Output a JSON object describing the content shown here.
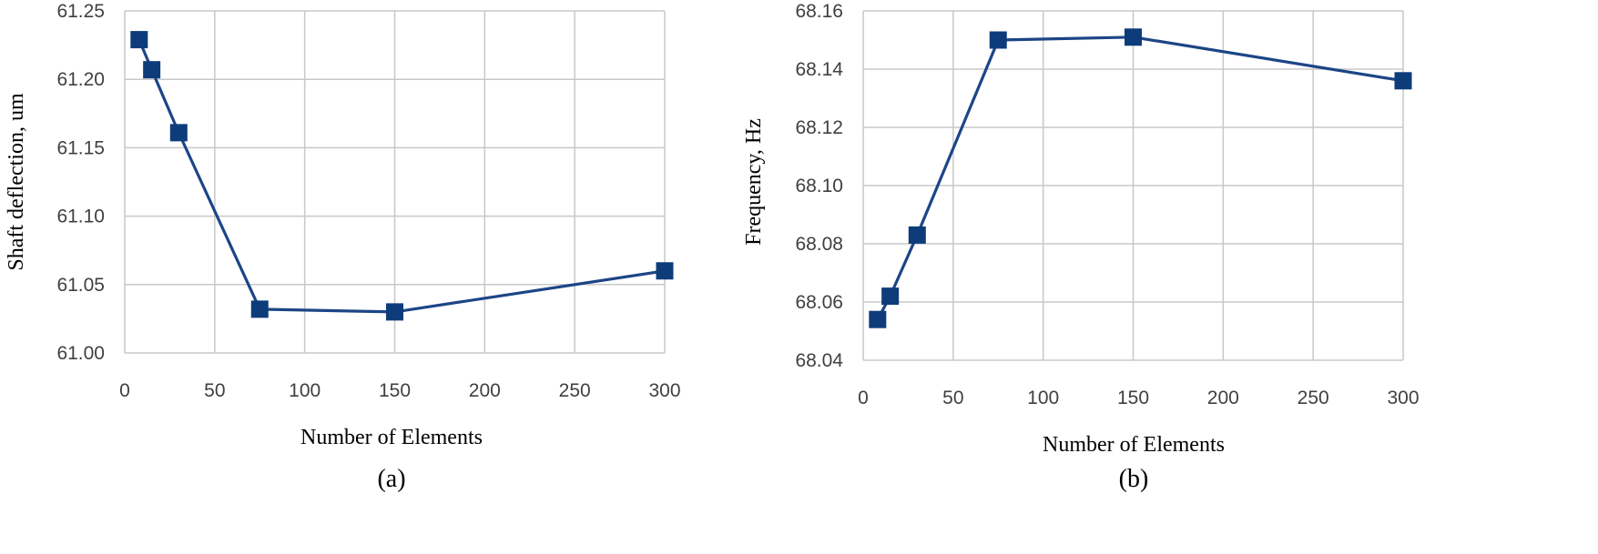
{
  "chart_data": [
    {
      "type": "line",
      "caption": "(a)",
      "xlabel": "Number of Elements",
      "ylabel": "Shaft deflection, um",
      "xlim": [
        0,
        300
      ],
      "ylim": [
        61.0,
        61.25
      ],
      "xticks": [
        "0",
        "50",
        "100",
        "150",
        "200",
        "250",
        "300"
      ],
      "yticks": [
        "61.00",
        "61.05",
        "61.10",
        "61.15",
        "61.20",
        "61.25"
      ],
      "grid": true,
      "marker": "square",
      "color": "#0e3c7a",
      "series": [
        {
          "x": [
            8,
            15,
            30,
            75,
            150,
            300
          ],
          "y": [
            61.229,
            61.207,
            61.161,
            61.032,
            61.03,
            61.06
          ]
        }
      ]
    },
    {
      "type": "line",
      "caption": "(b)",
      "xlabel": "Number of Elements",
      "ylabel": "Frequency, Hz",
      "xlim": [
        0,
        300
      ],
      "ylim": [
        68.04,
        68.16
      ],
      "xticks": [
        "0",
        "50",
        "100",
        "150",
        "200",
        "250",
        "300"
      ],
      "yticks": [
        "68.04",
        "68.06",
        "68.08",
        "68.10",
        "68.12",
        "68.14",
        "68.16"
      ],
      "grid": true,
      "marker": "square",
      "color": "#0e3c7a",
      "series": [
        {
          "x": [
            8,
            15,
            30,
            75,
            150,
            300
          ],
          "y": [
            68.054,
            68.062,
            68.083,
            68.15,
            68.151,
            68.136
          ]
        }
      ]
    }
  ]
}
